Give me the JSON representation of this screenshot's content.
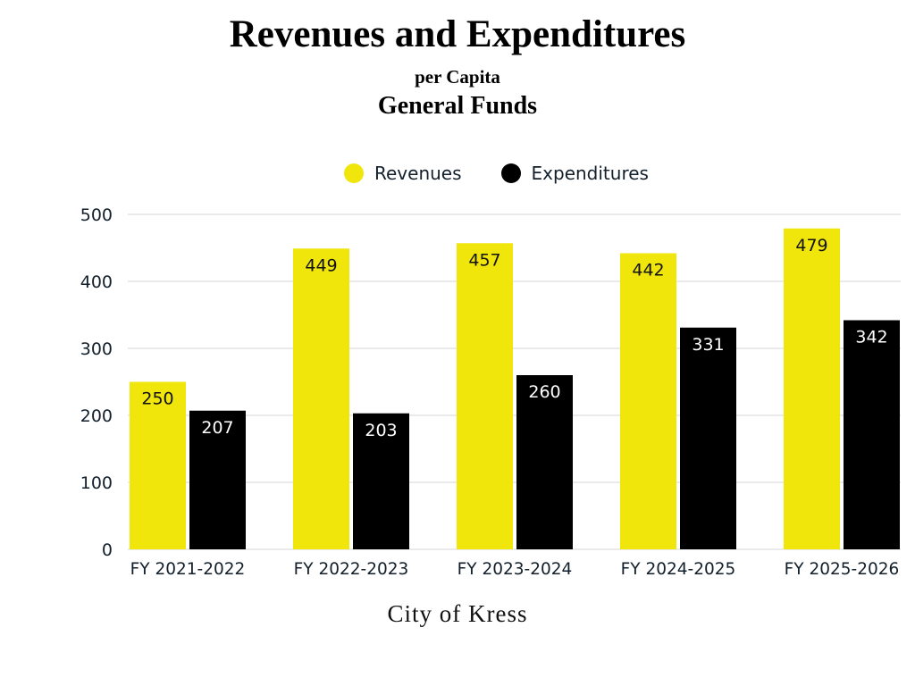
{
  "chart_data": {
    "type": "bar",
    "title": "Revenues and Expenditures",
    "subtitle": "per Capita",
    "subtitle2": "General Funds",
    "footer": "City of Kress",
    "categories": [
      "FY 2021-2022",
      "FY 2022-2023",
      "FY 2023-2024",
      "FY 2024-2025",
      "FY 2025-2026"
    ],
    "series": [
      {
        "name": "Revenues",
        "values": [
          250,
          449,
          457,
          442,
          479
        ],
        "color": "#f0e60c",
        "label_color": "#111111"
      },
      {
        "name": "Expenditures",
        "values": [
          207,
          203,
          260,
          331,
          342
        ],
        "color": "#000000",
        "label_color": "#ffffff"
      }
    ],
    "ylim": [
      0,
      500
    ],
    "yticks": [
      "0",
      "100",
      "200",
      "300",
      "400",
      "500"
    ],
    "grid": true,
    "legend": "top"
  }
}
